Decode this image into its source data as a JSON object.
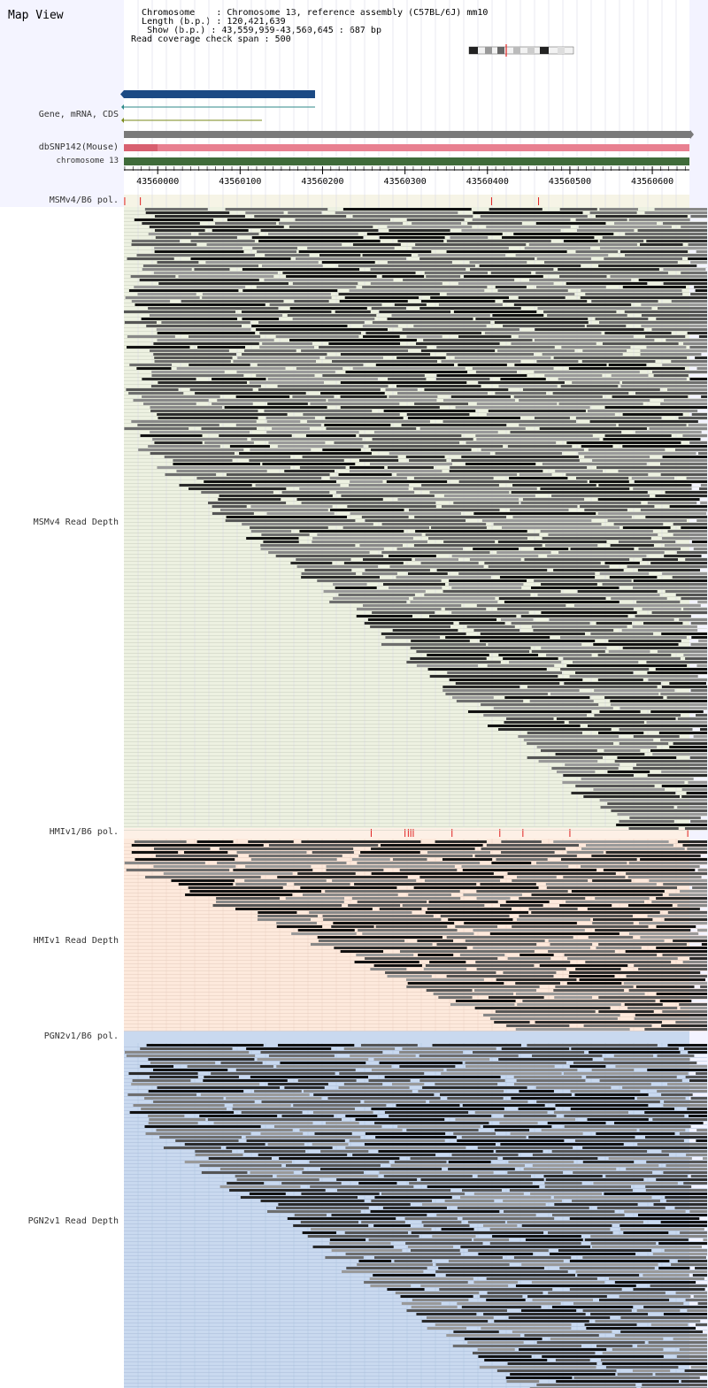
{
  "title": "Map View",
  "info": {
    "chromosome_label": "Chromosome",
    "chromosome_value": "Chromosome 13, reference assembly (C57BL/6J) mm10",
    "length_label": "Length (b.p.)",
    "length_value": "120,421,639",
    "show_label": "Show (b.p.)",
    "show_value": "43,559,959-43,560,645 : 687 bp",
    "read_coverage_label": "Read coverage check span",
    "read_coverage_value": "500"
  },
  "region": {
    "start": 43559959,
    "end": 43560645
  },
  "ruler": {
    "ticks": [
      43560000,
      43560100,
      43560200,
      43560300,
      43560400,
      43560500,
      43560600
    ],
    "tick_labels": [
      "43560000",
      "43560100",
      "43560200",
      "43560300",
      "43560400",
      "43560500",
      "43560600"
    ]
  },
  "tracks": {
    "gene_label": "Gene, mRNA, CDS",
    "snp_label": "dbSNP142(Mouse)",
    "chromosome_label": "chromosome 13",
    "msm_pol_label": "MSMv4/B6 pol.",
    "msm_depth_label": "MSMv4 Read Depth",
    "hmi_pol_label": "HMIv1/B6 pol.",
    "hmi_depth_label": "HMIv1 Read Depth",
    "pgn_pol_label": "PGN2v1/B6 pol.",
    "pgn_depth_label": "PGN2v1 Read Depth"
  },
  "polymorphisms": {
    "msm": [
      43559960,
      43559979,
      43560405,
      43560462
    ],
    "hmi": [
      43560259,
      43560300,
      43560304,
      43560307,
      43560310,
      43560357,
      43560415,
      43560443,
      43560500,
      43560643
    ],
    "pgn": []
  },
  "colors": {
    "gene_blue": "#1c4a84",
    "mrna_teal": "#2f8a8a",
    "cds_olive": "#7a8a1a",
    "snp_pink": "#e88090",
    "snp_dark_pink": "#d86070",
    "chromosome_green": "#3f6b3a",
    "polymorphism_red": "#e02020",
    "msm_bg": "#edf1e1",
    "hmi_bg": "#fde9dc",
    "pgn_bg": "#c9d9ef"
  }
}
